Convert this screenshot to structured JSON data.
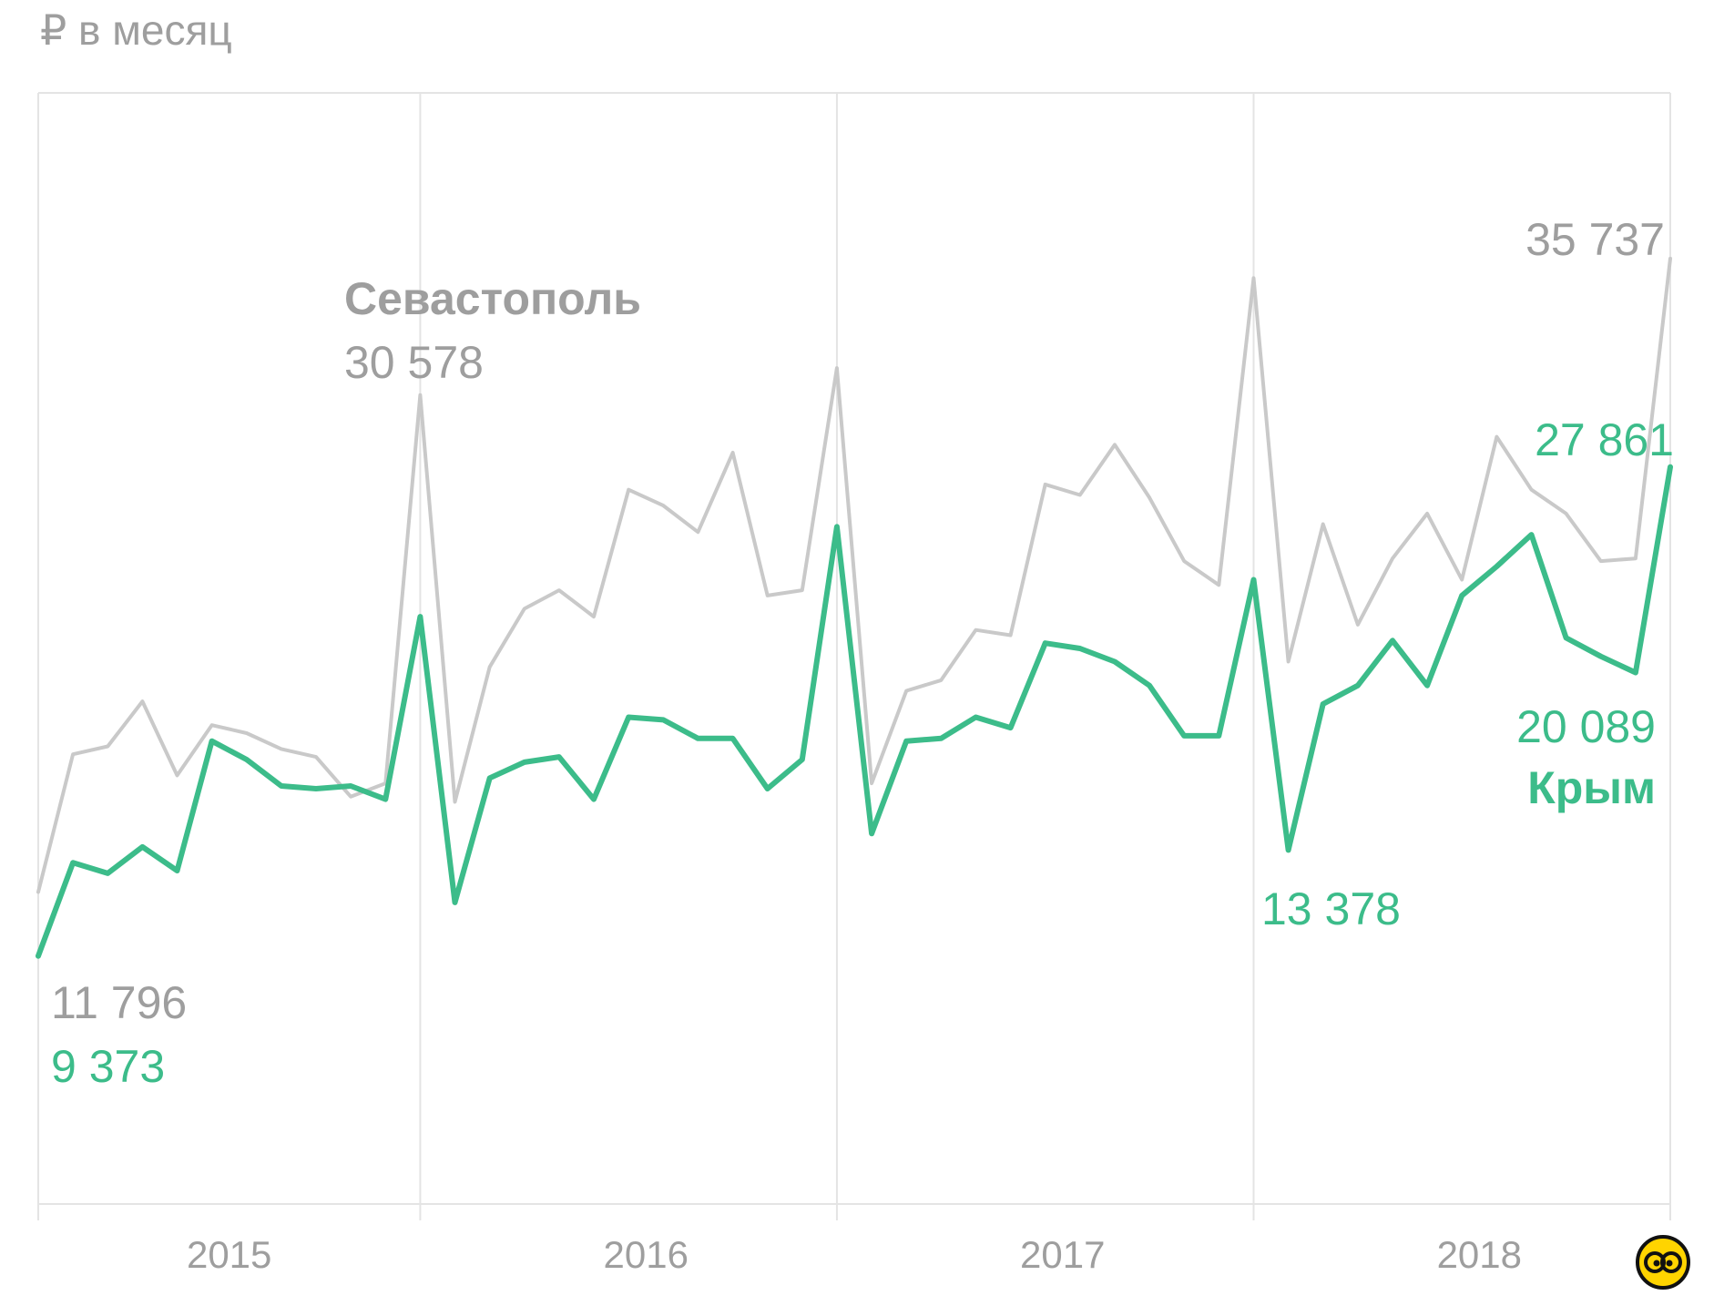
{
  "unit_label": "₽ в месяц",
  "colors": {
    "sevastopol": "#c9c9c9",
    "crimea": "#3cbc8a",
    "grid": "#e4e4e4",
    "text_gray": "#9e9e9e",
    "logo_bg": "#ffd400"
  },
  "logo_icon": "owl-eyes-logo-icon",
  "annotations": {
    "sevastopol_name": "Севастополь",
    "sevastopol_peak": "30 578",
    "sevastopol_last": "35 737",
    "sevastopol_first": "11 796",
    "crimea_first": "9 373",
    "crimea_dip": "13 378",
    "crimea_last": "27 861",
    "crimea_prev": "20 089",
    "crimea_name": "Крым"
  },
  "chart_data": {
    "type": "line",
    "title": "",
    "ylabel": "₽ в месяц",
    "ylim": [
      0,
      42000
    ],
    "grid": "vertical lines at year boundaries",
    "x_ticks": [
      "2015",
      "2016",
      "2017",
      "2018"
    ],
    "x": [
      "2015-01",
      "2015-02",
      "2015-03",
      "2015-04",
      "2015-05",
      "2015-06",
      "2015-07",
      "2015-08",
      "2015-09",
      "2015-10",
      "2015-11",
      "2015-12",
      "2016-01",
      "2016-02",
      "2016-03",
      "2016-04",
      "2016-05",
      "2016-06",
      "2016-07",
      "2016-08",
      "2016-09",
      "2016-10",
      "2016-11",
      "2016-12",
      "2017-01",
      "2017-02",
      "2017-03",
      "2017-04",
      "2017-05",
      "2017-06",
      "2017-07",
      "2017-08",
      "2017-09",
      "2017-10",
      "2017-11",
      "2017-12",
      "2018-01",
      "2018-02",
      "2018-03",
      "2018-04",
      "2018-05",
      "2018-06",
      "2018-07",
      "2018-08",
      "2018-09",
      "2018-10",
      "2018-11",
      "2018-12"
    ],
    "series": [
      {
        "name": "Севастополь",
        "color": "#c9c9c9",
        "values": [
          11796,
          17000,
          17300,
          19000,
          16200,
          18100,
          17800,
          17200,
          16900,
          15400,
          15900,
          30578,
          15200,
          20300,
          22500,
          23200,
          22200,
          27000,
          26400,
          25400,
          28400,
          23000,
          23200,
          31600,
          15900,
          19400,
          19800,
          21700,
          21500,
          27200,
          26800,
          28700,
          26700,
          24300,
          23400,
          35000,
          20500,
          25700,
          21900,
          24400,
          26100,
          23600,
          29000,
          27000,
          26100,
          24300,
          24400,
          35737
        ]
      },
      {
        "name": "Крым",
        "color": "#3cbc8a",
        "values": [
          9373,
          12900,
          12500,
          13500,
          12600,
          17500,
          16800,
          15800,
          15700,
          15800,
          15300,
          22200,
          11400,
          16100,
          16700,
          16900,
          15300,
          18400,
          18300,
          17600,
          17600,
          15700,
          16800,
          25600,
          14000,
          17500,
          17600,
          18400,
          18000,
          21200,
          21000,
          20500,
          19600,
          17700,
          17700,
          23600,
          13378,
          18900,
          19600,
          21300,
          19600,
          23000,
          24100,
          25300,
          21400,
          20700,
          20089,
          27861
        ]
      }
    ]
  }
}
